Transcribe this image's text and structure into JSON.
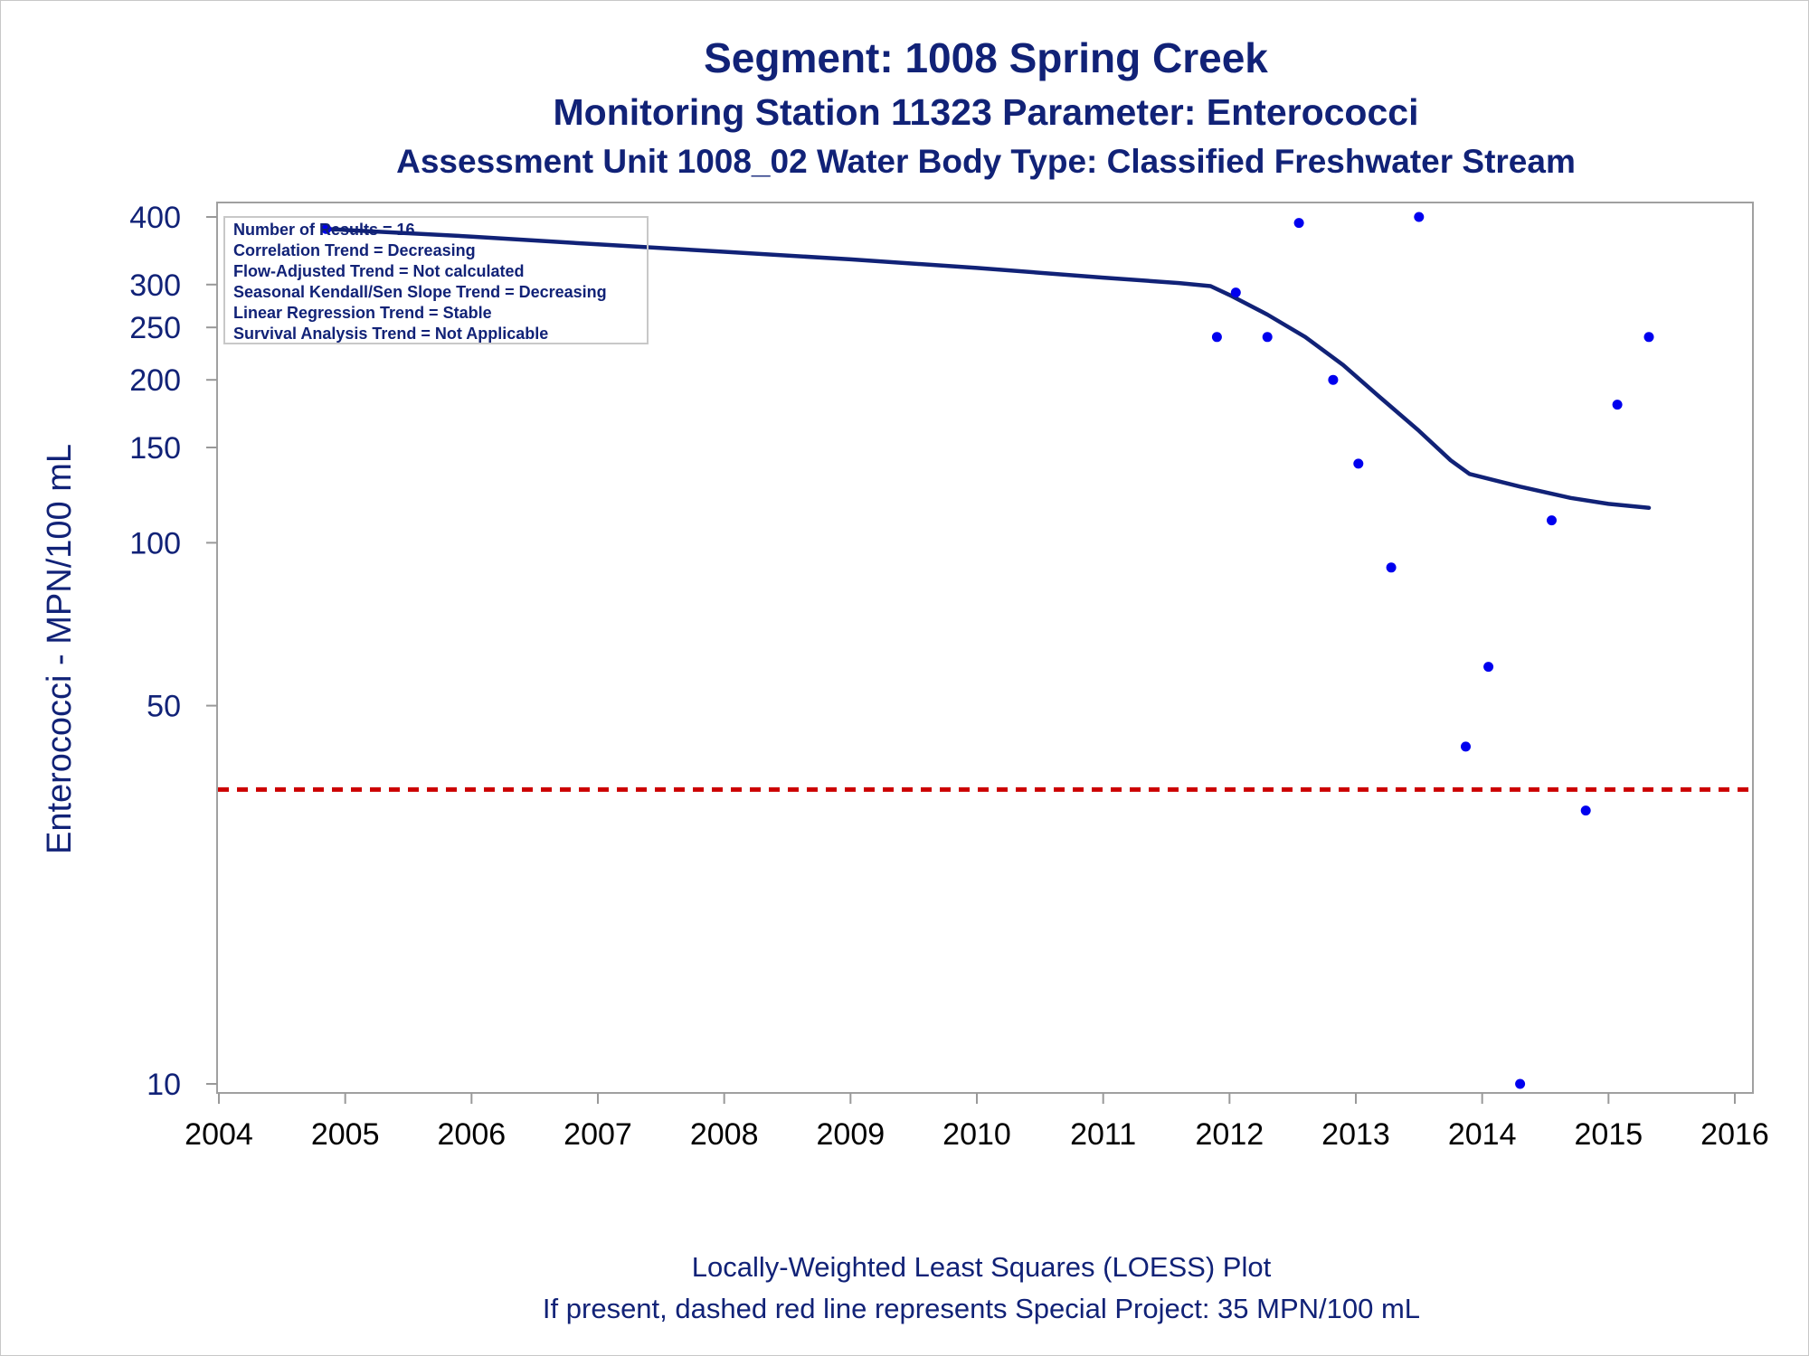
{
  "titles": [
    "Segment: 1008  Spring Creek",
    "Monitoring Station 11323 Parameter: Enterococci",
    "Assessment Unit 1008_02   Water Body Type: Classified Freshwater Stream"
  ],
  "inset_lines": [
    "Number of Results = 16",
    "Correlation Trend = Decreasing",
    "Flow-Adjusted Trend = Not calculated",
    "Seasonal Kendall/Sen Slope Trend = Decreasing",
    "Linear Regression Trend = Stable",
    "Survival Analysis Trend = Not Applicable"
  ],
  "footnotes": [
    "Locally-Weighted Least Squares (LOESS) Plot",
    "If present, dashed red line represents Special Project: 35 MPN/100 mL"
  ],
  "chart_data": {
    "type": "scatter",
    "ylabel": "Enterococci - MPN/100 mL",
    "xlabel": "",
    "y_scale": "log",
    "xlim": [
      2004,
      2016
    ],
    "ylim": [
      10,
      400
    ],
    "x_ticks": [
      2004,
      2005,
      2006,
      2007,
      2008,
      2009,
      2010,
      2011,
      2012,
      2013,
      2014,
      2015,
      2016
    ],
    "x_tick_labels": [
      "2004",
      "2005",
      "2006",
      "2007",
      "2008",
      "2009",
      "2010",
      "2011",
      "2012",
      "2013",
      "2014",
      "2015",
      "2016"
    ],
    "y_ticks": [
      10,
      50,
      100,
      150,
      200,
      250,
      300,
      400
    ],
    "y_tick_labels": [
      "10",
      "50",
      "100",
      "150",
      "200",
      "250",
      "300",
      "400"
    ],
    "grid": false,
    "points": [
      {
        "x": 2004.85,
        "y": 380
      },
      {
        "x": 2011.9,
        "y": 240
      },
      {
        "x": 2012.05,
        "y": 290
      },
      {
        "x": 2012.3,
        "y": 240
      },
      {
        "x": 2012.55,
        "y": 390
      },
      {
        "x": 2012.82,
        "y": 200
      },
      {
        "x": 2013.02,
        "y": 140
      },
      {
        "x": 2013.28,
        "y": 90
      },
      {
        "x": 2013.5,
        "y": 400
      },
      {
        "x": 2013.87,
        "y": 42
      },
      {
        "x": 2014.05,
        "y": 59
      },
      {
        "x": 2014.3,
        "y": 10
      },
      {
        "x": 2014.55,
        "y": 110
      },
      {
        "x": 2014.82,
        "y": 32
      },
      {
        "x": 2015.07,
        "y": 180
      },
      {
        "x": 2015.32,
        "y": 240
      }
    ],
    "loess": [
      {
        "x": 2004.85,
        "y": 380
      },
      {
        "x": 2006.0,
        "y": 368
      },
      {
        "x": 2007.0,
        "y": 356
      },
      {
        "x": 2008.0,
        "y": 345
      },
      {
        "x": 2009.0,
        "y": 334
      },
      {
        "x": 2010.0,
        "y": 322
      },
      {
        "x": 2011.0,
        "y": 309
      },
      {
        "x": 2011.6,
        "y": 302
      },
      {
        "x": 2011.85,
        "y": 298
      },
      {
        "x": 2012.0,
        "y": 287
      },
      {
        "x": 2012.3,
        "y": 264
      },
      {
        "x": 2012.6,
        "y": 240
      },
      {
        "x": 2012.9,
        "y": 213
      },
      {
        "x": 2013.2,
        "y": 185
      },
      {
        "x": 2013.5,
        "y": 161
      },
      {
        "x": 2013.75,
        "y": 142
      },
      {
        "x": 2013.9,
        "y": 134
      },
      {
        "x": 2014.3,
        "y": 127
      },
      {
        "x": 2014.7,
        "y": 121
      },
      {
        "x": 2015.0,
        "y": 118
      },
      {
        "x": 2015.32,
        "y": 116
      }
    ],
    "reference_line": {
      "y": 35,
      "style": "dashed",
      "color": "#cc0000"
    },
    "colors": {
      "points": "#0000ee",
      "loess": "#112277",
      "axis": "#999999",
      "text": "#112277"
    }
  }
}
